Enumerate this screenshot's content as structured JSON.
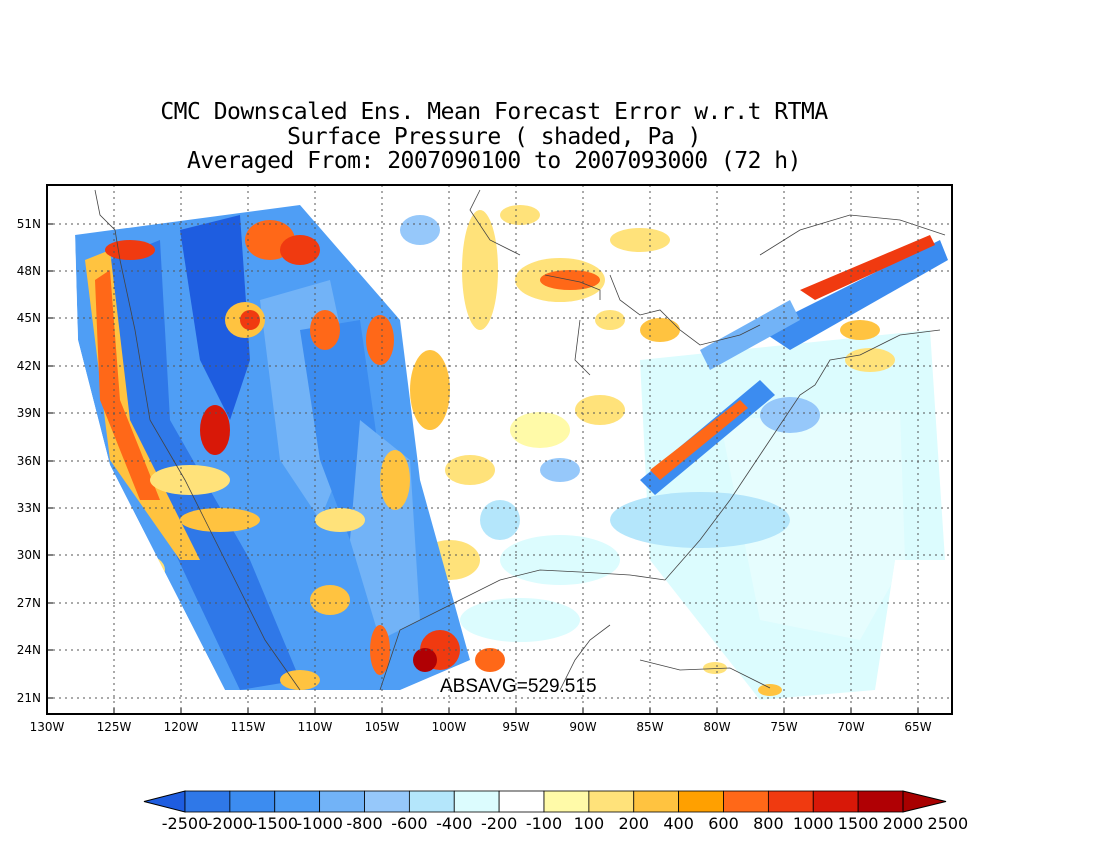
{
  "title": {
    "line1": "CMC Downscaled Ens. Mean Forecast Error w.r.t RTMA",
    "line2": "Surface Pressure ( shaded, Pa )",
    "line3": "Averaged From: 2007090100 to 2007093000 (72 h)"
  },
  "absavg": "ABSAVG=529.515",
  "map": {
    "lat_ticks": [
      "51N",
      "48N",
      "45N",
      "42N",
      "39N",
      "36N",
      "33N",
      "30N",
      "27N",
      "24N",
      "21N"
    ],
    "lon_ticks": [
      "130W",
      "125W",
      "120W",
      "115W",
      "110W",
      "105W",
      "100W",
      "95W",
      "90W",
      "85W",
      "80W",
      "75W",
      "70W",
      "65W"
    ],
    "lon_range": [
      -130,
      -62.5
    ],
    "lat_range": [
      19.5,
      52.5
    ]
  },
  "colorbar": {
    "labels": [
      "-2500",
      "-2000",
      "-1500",
      "-1000",
      "-800",
      "-600",
      "-400",
      "-200",
      "-100",
      "100",
      "200",
      "400",
      "600",
      "800",
      "1000",
      "1500",
      "2000",
      "2500"
    ],
    "colors": [
      "#1e5de0",
      "#2f78e8",
      "#3c8cf0",
      "#4f9ef5",
      "#72b3f7",
      "#96c8fa",
      "#b4e6fb",
      "#dcfcfe",
      "#ffffff",
      "#fffaa8",
      "#ffe27a",
      "#ffc340",
      "#ffa000",
      "#ff6818",
      "#f03a10",
      "#d81808",
      "#b00004",
      "#a80000"
    ]
  }
}
